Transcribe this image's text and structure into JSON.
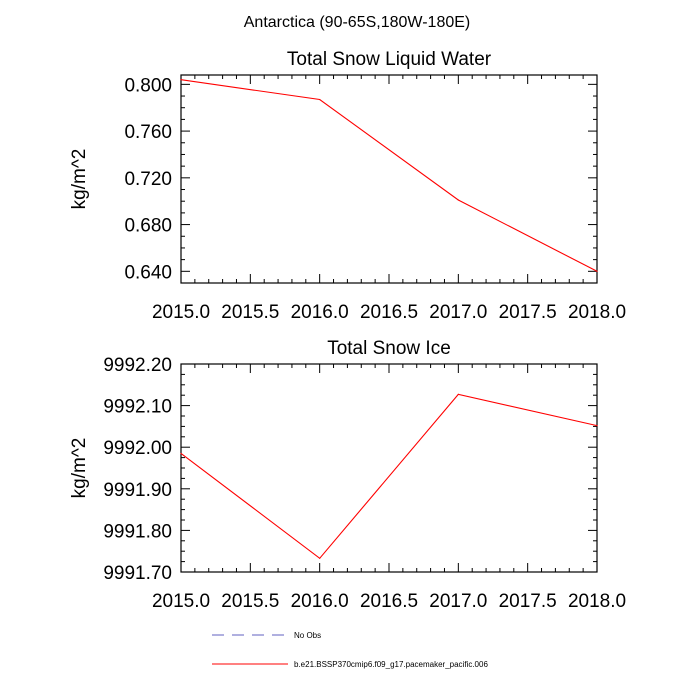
{
  "figure_title": "Antarctica (90-65S,180W-180E)",
  "chart_data": [
    {
      "type": "line",
      "title": "Total Snow Liquid Water",
      "xlabel": "",
      "ylabel": "kg/m^2",
      "x": [
        2015.0,
        2016.0,
        2017.0,
        2018.0
      ],
      "xlim": [
        2015.0,
        2018.0
      ],
      "ylim": [
        0.63,
        0.808
      ],
      "xticks": [
        "2015.0",
        "2015.5",
        "2016.0",
        "2016.5",
        "2017.0",
        "2017.5",
        "2018.0"
      ],
      "yticks": [
        "0.800",
        "0.760",
        "0.720",
        "0.680",
        "0.640"
      ],
      "series": [
        {
          "name": "b.e21.BSSP370cmip6.f09_g17.pacemaker_pacific.006",
          "color": "#ff0000",
          "values": [
            0.804,
            0.787,
            0.701,
            0.64
          ]
        }
      ],
      "grid": false
    },
    {
      "type": "line",
      "title": "Total Snow Ice",
      "xlabel": "",
      "ylabel": "kg/m^2",
      "x": [
        2015.0,
        2016.0,
        2017.0,
        2018.0
      ],
      "xlim": [
        2015.0,
        2018.0
      ],
      "ylim": [
        9991.7,
        9992.2
      ],
      "xticks": [
        "2015.0",
        "2015.5",
        "2016.0",
        "2016.5",
        "2017.0",
        "2017.5",
        "2018.0"
      ],
      "yticks": [
        "9992.20",
        "9992.10",
        "9992.00",
        "9991.90",
        "9991.80",
        "9991.70"
      ],
      "series": [
        {
          "name": "b.e21.BSSP370cmip6.f09_g17.pacemaker_pacific.006",
          "color": "#ff0000",
          "values": [
            9991.985,
            9991.733,
            9992.127,
            9992.052
          ]
        }
      ],
      "grid": false
    }
  ],
  "legend": {
    "placement": "bottom-center",
    "entries": [
      {
        "label": "No Obs",
        "color": "#6060c0",
        "style": "dashed"
      },
      {
        "label": "b.e21.BSSP370cmip6.f09_g17.pacemaker_pacific.006",
        "color": "#ff0000",
        "style": "solid"
      }
    ]
  }
}
